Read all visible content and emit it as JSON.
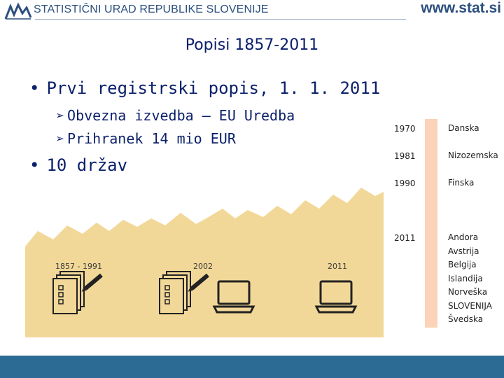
{
  "header": {
    "org_name": "STATISTIČNI URAD REPUBLIKE SLOVENIJE",
    "website": "www.stat.si",
    "brand_color": "#2b4f7e"
  },
  "slide": {
    "title": "Popisi 1857-2011",
    "bullets": [
      {
        "text": "Prvi registrski popis, 1. 1. 2011",
        "sub": [
          "Obvezna izvedba – EU Uredba",
          "Prihranek 14 mio EUR"
        ]
      },
      {
        "text": "10 držav",
        "sub": []
      }
    ]
  },
  "illustration": {
    "eras": [
      {
        "label": "1857 - 1991",
        "icons": [
          "paper-forms-icon",
          "pen-icon"
        ]
      },
      {
        "label": "2002",
        "icons": [
          "paper-forms-icon",
          "pen-icon",
          "laptop-icon"
        ]
      },
      {
        "label": "2011",
        "icons": [
          "laptop-icon"
        ]
      }
    ],
    "background_color": "#f2d898"
  },
  "timeline": {
    "groups": [
      {
        "year": "1970",
        "countries": [
          "Danska"
        ]
      },
      {
        "year": "1981",
        "countries": [
          "Nizozemska"
        ]
      },
      {
        "year": "1990",
        "countries": [
          "Finska"
        ]
      },
      {
        "year": "2011",
        "countries": [
          "Andora",
          "Avstrija",
          "Belgija",
          "Islandija",
          "Norveška",
          "SLOVENIJA",
          "Švedska"
        ]
      }
    ],
    "strip_color": "#fcd2b8"
  },
  "footer": {
    "color": "#2c6b93"
  }
}
